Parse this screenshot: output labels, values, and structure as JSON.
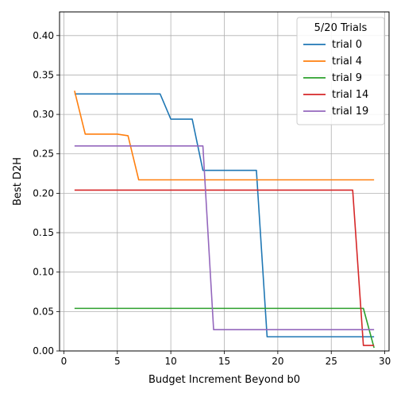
{
  "chart_data": {
    "type": "line",
    "title": "",
    "xlabel": "Budget Increment Beyond b0",
    "ylabel": "Best D2H",
    "xlim": [
      -0.4,
      30.4
    ],
    "ylim": [
      0.0,
      0.43
    ],
    "xticks": [
      0,
      5,
      10,
      15,
      20,
      25,
      30
    ],
    "yticks": [
      0.0,
      0.05,
      0.1,
      0.15,
      0.2,
      0.25,
      0.3,
      0.35,
      0.4
    ],
    "xtick_labels": [
      "0",
      "5",
      "10",
      "15",
      "20",
      "25",
      "30"
    ],
    "ytick_labels": [
      "0.00",
      "0.05",
      "0.10",
      "0.15",
      "0.20",
      "0.25",
      "0.30",
      "0.35",
      "0.40"
    ],
    "grid": true,
    "legend": {
      "title": "5/20 Trials",
      "placement": "top-right"
    },
    "series": [
      {
        "name": "trial 0",
        "color": "#1f77b4",
        "x": [
          1,
          9,
          10,
          12,
          13,
          18,
          19,
          29
        ],
        "y": [
          0.326,
          0.326,
          0.294,
          0.294,
          0.229,
          0.229,
          0.018,
          0.018
        ]
      },
      {
        "name": "trial 4",
        "color": "#ff7f0e",
        "x": [
          1,
          2,
          5,
          6,
          7,
          29
        ],
        "y": [
          0.33,
          0.275,
          0.275,
          0.273,
          0.217,
          0.217
        ]
      },
      {
        "name": "trial 9",
        "color": "#2ca02c",
        "x": [
          1,
          28,
          29
        ],
        "y": [
          0.054,
          0.054,
          0.004
        ]
      },
      {
        "name": "trial 14",
        "color": "#d62728",
        "x": [
          1,
          27,
          28,
          29
        ],
        "y": [
          0.204,
          0.204,
          0.007,
          0.007
        ]
      },
      {
        "name": "trial 19",
        "color": "#9467bd",
        "x": [
          1,
          13,
          14,
          29
        ],
        "y": [
          0.26,
          0.26,
          0.027,
          0.027
        ]
      }
    ]
  }
}
